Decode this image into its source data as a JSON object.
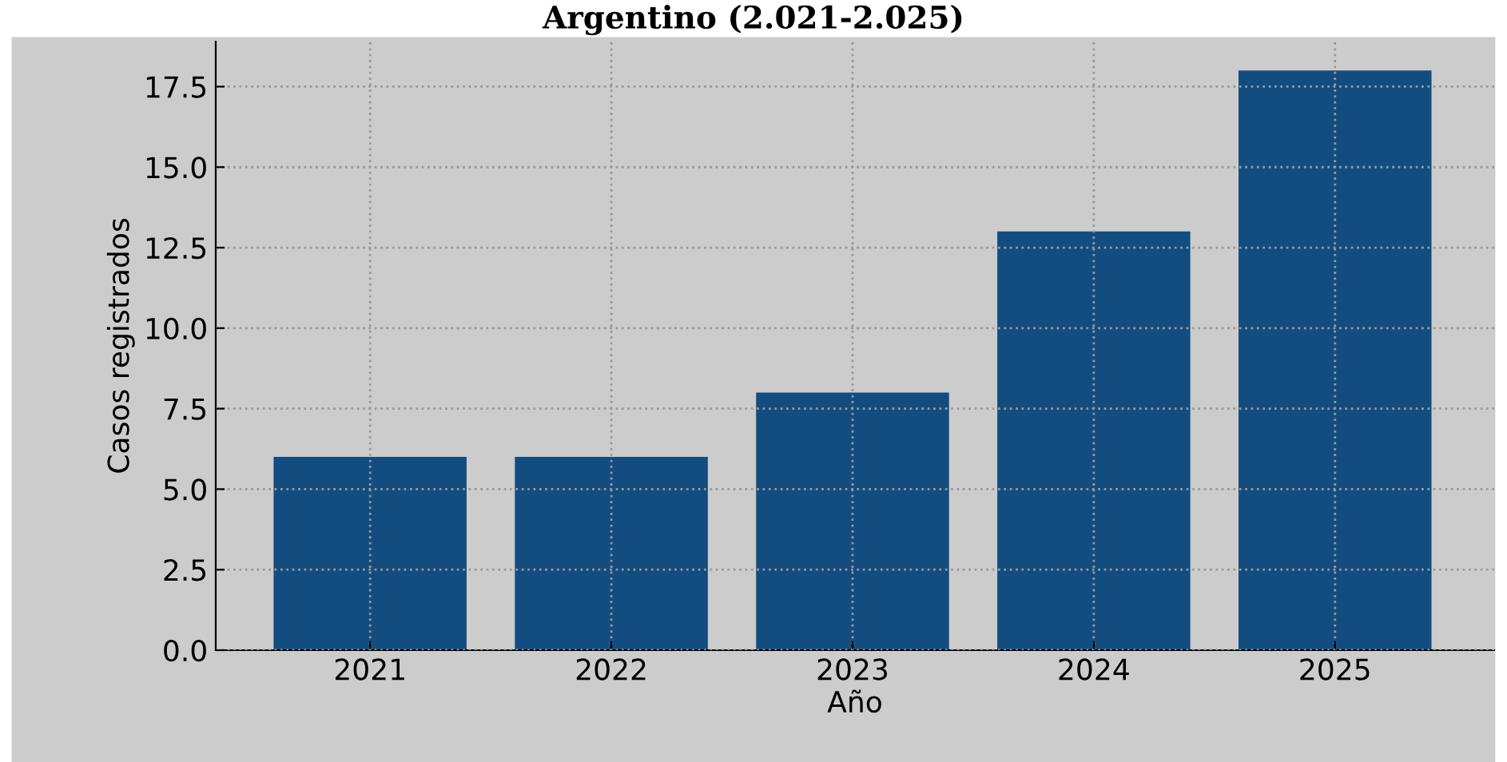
{
  "chart_data": {
    "type": "bar",
    "title": "Argentino (2.021-2.025)",
    "xlabel": "Año",
    "ylabel": "Casos registrados",
    "categories": [
      "2021",
      "2022",
      "2023",
      "2024",
      "2025"
    ],
    "values": [
      6,
      6,
      8,
      13,
      18
    ],
    "color": "#134d80",
    "ylim": [
      0,
      18.9
    ],
    "yticks": [
      {
        "value": 0,
        "label": "0.0"
      },
      {
        "value": 2.5,
        "label": "2.5"
      },
      {
        "value": 5,
        "label": "5.0"
      },
      {
        "value": 7.5,
        "label": "7.5"
      },
      {
        "value": 10,
        "label": "10.0"
      },
      {
        "value": 12.5,
        "label": "12.5"
      },
      {
        "value": 15,
        "label": "15.0"
      },
      {
        "value": 17.5,
        "label": "17.5"
      }
    ],
    "grid": true
  }
}
